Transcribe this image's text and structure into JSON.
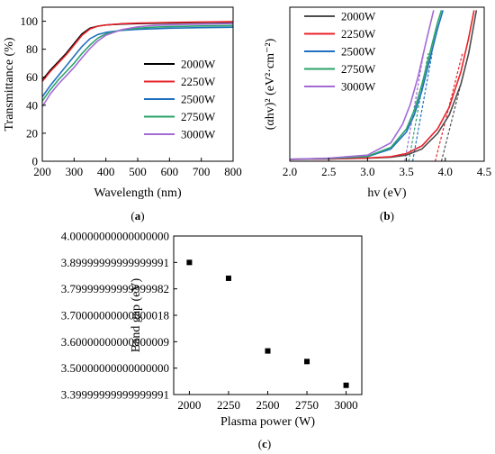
{
  "colors": {
    "2000W": "#000000",
    "2250W": "#e8232a",
    "2500W": "#1f6fbf",
    "2750W": "#2aa36a",
    "3000W": "#a36ad6"
  },
  "chart_data": [
    {
      "id": "a",
      "type": "line",
      "panel_label": "a",
      "xlabel": "Wavelength (nm)",
      "ylabel": "Transmittance (%)",
      "xlim": [
        200,
        800
      ],
      "ylim": [
        0,
        110
      ],
      "xticks": [
        200,
        300,
        400,
        500,
        600,
        700,
        800
      ],
      "yticks": [
        0,
        20,
        40,
        60,
        80,
        100
      ],
      "legend": "right",
      "grid": false,
      "series": [
        {
          "name": "2000W",
          "color": "#000000",
          "x": [
            200,
            225,
            250,
            275,
            300,
            325,
            350,
            375,
            400,
            450,
            500,
            550,
            600,
            700,
            800
          ],
          "y": [
            58,
            65,
            71,
            77,
            84,
            91,
            95,
            96.5,
            97.3,
            98,
            98.3,
            98.5,
            98.7,
            99.1,
            99.4
          ]
        },
        {
          "name": "2250W",
          "color": "#e8232a",
          "x": [
            200,
            225,
            250,
            275,
            300,
            325,
            350,
            375,
            400,
            450,
            500,
            550,
            600,
            700,
            800
          ],
          "y": [
            57,
            64,
            70,
            76,
            83,
            90,
            94.5,
            96.5,
            97.3,
            98.2,
            98.6,
            98.9,
            99.1,
            99.4,
            99.7
          ]
        },
        {
          "name": "2500W",
          "color": "#1f6fbf",
          "x": [
            200,
            225,
            250,
            275,
            300,
            325,
            350,
            375,
            400,
            450,
            500,
            550,
            600,
            700,
            800
          ],
          "y": [
            46,
            54,
            61,
            68,
            75,
            82,
            87.5,
            90.5,
            92,
            93.5,
            94.2,
            94.6,
            95,
            95.4,
            95.7
          ]
        },
        {
          "name": "2750W",
          "color": "#2aa36a",
          "x": [
            200,
            225,
            250,
            275,
            300,
            325,
            350,
            375,
            400,
            450,
            500,
            550,
            600,
            700,
            800
          ],
          "y": [
            43,
            51,
            58,
            64,
            70,
            77,
            83,
            88,
            91,
            93.8,
            95,
            95.7,
            96.1,
            96.6,
            96.9
          ]
        },
        {
          "name": "3000W",
          "color": "#a36ad6",
          "x": [
            200,
            225,
            250,
            275,
            300,
            325,
            350,
            375,
            400,
            450,
            500,
            550,
            600,
            700,
            800
          ],
          "y": [
            39,
            48,
            55,
            61,
            67,
            74,
            80.5,
            86,
            90,
            94,
            96,
            97,
            97.4,
            97.9,
            98.3
          ]
        }
      ]
    },
    {
      "id": "b",
      "type": "line",
      "panel_label": "b",
      "xlabel": "hv (eV)",
      "ylabel": "(αhv)² (eV²·cm⁻²)",
      "xlim": [
        2.0,
        4.5
      ],
      "ylim": [
        0,
        100
      ],
      "xticks": [
        2.0,
        2.5,
        3.0,
        3.5,
        4.0,
        4.5
      ],
      "yticks": [],
      "legend": "top-left",
      "grid": false,
      "series": [
        {
          "name": "2000W",
          "color": "#4d4d4d",
          "x": [
            2.0,
            2.5,
            3.0,
            3.3,
            3.5,
            3.7,
            3.9,
            4.05,
            4.2,
            4.3,
            4.4
          ],
          "y": [
            1.2,
            1.5,
            2.0,
            2.6,
            4.0,
            8.0,
            18,
            30,
            50,
            70,
            98
          ]
        },
        {
          "name": "2250W",
          "color": "#e8232a",
          "x": [
            2.0,
            2.5,
            3.0,
            3.3,
            3.5,
            3.7,
            3.9,
            4.05,
            4.2,
            4.3,
            4.37
          ],
          "y": [
            1.2,
            1.5,
            2.1,
            3.0,
            5.0,
            10,
            21,
            35,
            58,
            80,
            98
          ]
        },
        {
          "name": "2500W",
          "color": "#1f6fbf",
          "x": [
            2.0,
            2.5,
            3.0,
            3.3,
            3.5,
            3.6,
            3.7,
            3.8,
            3.9,
            3.97
          ],
          "y": [
            1.3,
            1.8,
            3.0,
            8.0,
            19,
            30,
            46,
            66,
            86,
            98
          ]
        },
        {
          "name": "2750W",
          "color": "#2aa36a",
          "x": [
            2.0,
            2.5,
            3.0,
            3.3,
            3.5,
            3.6,
            3.7,
            3.8,
            3.9,
            3.95
          ],
          "y": [
            1.3,
            1.8,
            3.2,
            9.0,
            21,
            33,
            50,
            70,
            90,
            98
          ]
        },
        {
          "name": "3000W",
          "color": "#a36ad6",
          "x": [
            2.0,
            2.5,
            3.0,
            3.3,
            3.45,
            3.55,
            3.65,
            3.75,
            3.85
          ],
          "y": [
            1.3,
            2.0,
            4.0,
            12,
            24,
            37,
            55,
            77,
            98
          ]
        }
      ],
      "tangents": [
        {
          "name": "2000W",
          "color": "#4d4d4d",
          "x": [
            3.95,
            4.31
          ],
          "y": [
            0,
            72
          ]
        },
        {
          "name": "2250W",
          "color": "#e8232a",
          "x": [
            3.87,
            4.22
          ],
          "y": [
            0,
            70
          ]
        },
        {
          "name": "2500W",
          "color": "#1f6fbf",
          "x": [
            3.58,
            3.83
          ],
          "y": [
            0,
            70
          ]
        },
        {
          "name": "2750W",
          "color": "#2aa36a",
          "x": [
            3.53,
            3.78
          ],
          "y": [
            0,
            70
          ]
        },
        {
          "name": "3000W",
          "color": "#a36ad6",
          "x": [
            3.48,
            3.72
          ],
          "y": [
            0,
            70
          ]
        }
      ]
    },
    {
      "id": "c",
      "type": "scatter",
      "panel_label": "c",
      "xlabel": "Plasma power (W)",
      "ylabel": "Band gap (eV)",
      "xlim": [
        1900,
        3100
      ],
      "ylim": [
        3.4,
        4.0
      ],
      "xticks": [
        2000,
        2250,
        2500,
        2750,
        3000
      ],
      "yticks": [
        3.4,
        3.5,
        3.6,
        3.7,
        3.8,
        3.9,
        4.0
      ],
      "legend": "none",
      "grid": false,
      "series": [
        {
          "name": "",
          "color": "#000000",
          "x": [
            2000,
            2250,
            2500,
            2750,
            3000
          ],
          "y": [
            3.9,
            3.84,
            3.565,
            3.525,
            3.435
          ]
        }
      ]
    }
  ]
}
